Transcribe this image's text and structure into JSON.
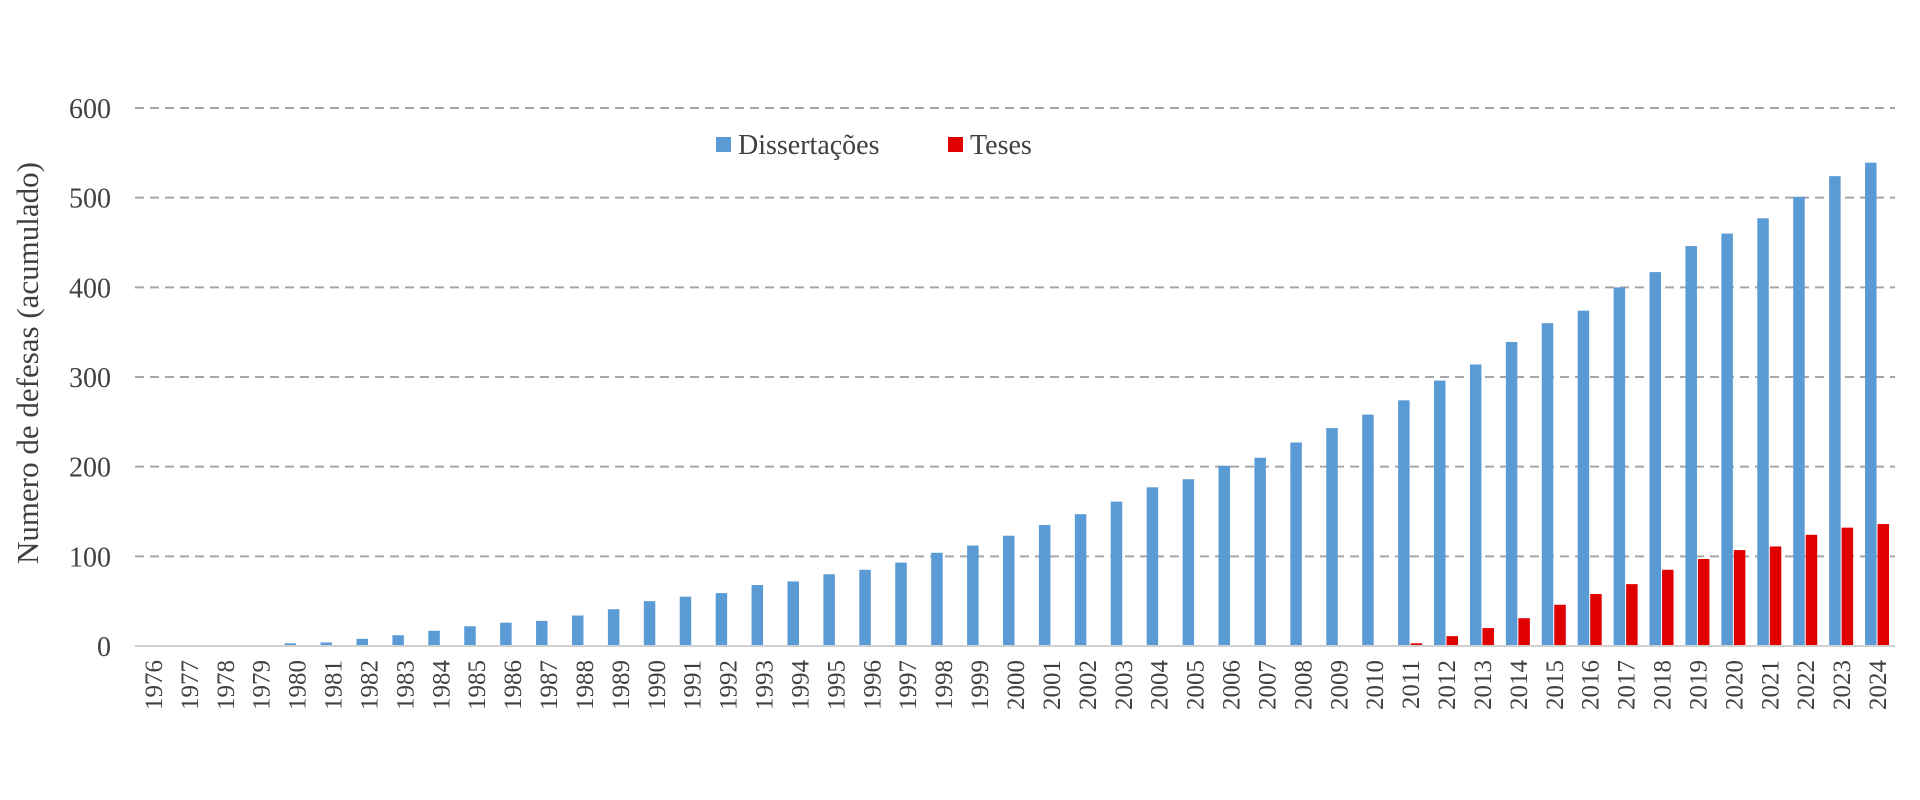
{
  "chart_data": {
    "type": "bar",
    "title": "",
    "xlabel": "",
    "ylabel": "Numero de defesas (acumulado)",
    "ylim": [
      0,
      600
    ],
    "yticks": [
      0,
      100,
      200,
      300,
      400,
      500,
      600
    ],
    "grid": "horizontal-dashed",
    "legend_position": "top-center",
    "categories": [
      "1976",
      "1977",
      "1978",
      "1979",
      "1980",
      "1981",
      "1982",
      "1983",
      "1984",
      "1985",
      "1986",
      "1987",
      "1988",
      "1989",
      "1990",
      "1991",
      "1992",
      "1993",
      "1994",
      "1995",
      "1996",
      "1997",
      "1998",
      "1999",
      "2000",
      "2001",
      "2002",
      "2003",
      "2004",
      "2005",
      "2006",
      "2007",
      "2008",
      "2009",
      "2010",
      "2011",
      "2012",
      "2013",
      "2014",
      "2015",
      "2016",
      "2017",
      "2018",
      "2019",
      "2020",
      "2021",
      "2022",
      "2023",
      "2024"
    ],
    "series": [
      {
        "name": "Dissertações",
        "color": "#5B9BD5",
        "values": [
          0,
          0,
          0,
          1,
          3,
          4,
          8,
          12,
          17,
          22,
          26,
          28,
          34,
          41,
          50,
          55,
          59,
          68,
          72,
          80,
          85,
          93,
          104,
          112,
          123,
          135,
          147,
          161,
          177,
          186,
          201,
          210,
          227,
          243,
          258,
          274,
          296,
          314,
          339,
          360,
          374,
          400,
          417,
          446,
          460,
          477,
          501,
          524,
          539
        ]
      },
      {
        "name": "Teses",
        "color": "#E00000",
        "values": [
          0,
          0,
          0,
          0,
          0,
          0,
          0,
          0,
          0,
          0,
          0,
          0,
          0,
          0,
          0,
          0,
          0,
          0,
          0,
          0,
          0,
          0,
          0,
          0,
          0,
          0,
          0,
          0,
          0,
          0,
          0,
          0,
          0,
          0,
          0,
          3,
          11,
          20,
          31,
          46,
          58,
          69,
          85,
          97,
          107,
          111,
          124,
          132,
          136
        ]
      }
    ]
  }
}
